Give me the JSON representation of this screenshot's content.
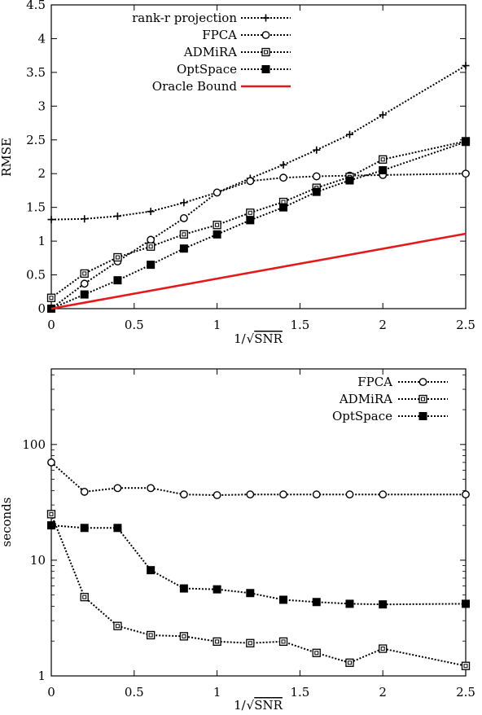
{
  "chart_data": [
    {
      "type": "line",
      "ylabel": "RMSE",
      "xlabel": "1/√SNR",
      "xlabel_prefix": "1/",
      "xlabel_root": "SNR",
      "xlim": [
        0,
        2.5
      ],
      "ylim": [
        0,
        4.5
      ],
      "xticks": [
        "0",
        "0.5",
        "1",
        "1.5",
        "2",
        "2.5"
      ],
      "yticks": [
        "0",
        "0.5",
        "1",
        "1.5",
        "2",
        "2.5",
        "3",
        "3.5",
        "4",
        "4.5"
      ],
      "xtick_values": [
        0,
        0.5,
        1,
        1.5,
        2,
        2.5
      ],
      "ytick_values": [
        0,
        0.5,
        1,
        1.5,
        2,
        2.5,
        3,
        3.5,
        4,
        4.5
      ],
      "yscale": "linear",
      "grid": false,
      "legend_position": "top-left",
      "series": [
        {
          "name": "rank-r projection",
          "marker": "plus",
          "style": "dotted",
          "color": "#000000",
          "x": [
            0,
            0.2,
            0.4,
            0.6,
            0.8,
            1.0,
            1.2,
            1.4,
            1.6,
            1.8,
            2.0,
            2.5
          ],
          "y": [
            1.32,
            1.33,
            1.37,
            1.44,
            1.57,
            1.72,
            1.93,
            2.13,
            2.35,
            2.58,
            2.87,
            3.6
          ]
        },
        {
          "name": "FPCA",
          "marker": "circle",
          "style": "dotted",
          "color": "#000000",
          "x": [
            0,
            0.2,
            0.4,
            0.6,
            0.8,
            1.0,
            1.2,
            1.4,
            1.6,
            1.8,
            2.0,
            2.5
          ],
          "y": [
            0.0,
            0.37,
            0.7,
            1.02,
            1.34,
            1.72,
            1.89,
            1.94,
            1.96,
            1.97,
            1.98,
            2.0
          ]
        },
        {
          "name": "ADMiRA",
          "marker": "square-open",
          "style": "dotted",
          "color": "#000000",
          "x": [
            0,
            0.2,
            0.4,
            0.6,
            0.8,
            1.0,
            1.2,
            1.4,
            1.6,
            1.8,
            2.0,
            2.5
          ],
          "y": [
            0.16,
            0.52,
            0.76,
            0.92,
            1.1,
            1.24,
            1.42,
            1.58,
            1.79,
            1.95,
            2.21,
            2.48
          ]
        },
        {
          "name": "OptSpace",
          "marker": "square-filled",
          "style": "dotted",
          "color": "#000000",
          "x": [
            0,
            0.2,
            0.4,
            0.6,
            0.8,
            1.0,
            1.2,
            1.4,
            1.6,
            1.8,
            2.0,
            2.5
          ],
          "y": [
            0.0,
            0.21,
            0.42,
            0.65,
            0.89,
            1.1,
            1.31,
            1.5,
            1.73,
            1.9,
            2.05,
            2.47
          ]
        },
        {
          "name": "Oracle Bound",
          "marker": "none",
          "style": "solid",
          "color": "#e31a1c",
          "x": [
            0,
            2.5
          ],
          "y": [
            0.0,
            1.11
          ]
        }
      ]
    },
    {
      "type": "line",
      "ylabel": "seconds",
      "xlabel": "1/√SNR",
      "xlabel_prefix": "1/",
      "xlabel_root": "SNR",
      "xlim": [
        0,
        2.5
      ],
      "ylim": [
        1,
        450
      ],
      "xticks": [
        "0",
        "0.5",
        "1",
        "1.5",
        "2",
        "2.5"
      ],
      "yticks": [
        "1",
        "10",
        "100"
      ],
      "xtick_values": [
        0,
        0.5,
        1,
        1.5,
        2,
        2.5
      ],
      "ytick_values": [
        1,
        10,
        100
      ],
      "yscale": "log",
      "grid": false,
      "legend_position": "top-right",
      "series": [
        {
          "name": "FPCA",
          "marker": "circle",
          "style": "dotted",
          "color": "#000000",
          "x": [
            0,
            0.2,
            0.4,
            0.6,
            0.8,
            1.0,
            1.2,
            1.4,
            1.6,
            1.8,
            2.0,
            2.5
          ],
          "y": [
            70,
            39,
            42,
            42,
            37,
            36.5,
            37,
            37,
            37,
            37,
            37,
            37
          ]
        },
        {
          "name": "ADMiRA",
          "marker": "square-open",
          "style": "dotted",
          "color": "#000000",
          "x": [
            0,
            0.2,
            0.4,
            0.6,
            0.8,
            1.0,
            1.2,
            1.4,
            1.6,
            1.8,
            2.0,
            2.5
          ],
          "y": [
            25,
            4.8,
            2.7,
            2.25,
            2.2,
            1.98,
            1.92,
            1.98,
            1.58,
            1.3,
            1.72,
            1.22
          ]
        },
        {
          "name": "OptSpace",
          "marker": "square-filled",
          "style": "dotted",
          "color": "#000000",
          "x": [
            0,
            0.2,
            0.4,
            0.6,
            0.8,
            1.0,
            1.2,
            1.4,
            1.6,
            1.8,
            2.0,
            2.5
          ],
          "y": [
            20,
            19,
            19,
            8.2,
            5.7,
            5.6,
            5.2,
            4.55,
            4.35,
            4.2,
            4.15,
            4.2
          ]
        }
      ]
    }
  ]
}
